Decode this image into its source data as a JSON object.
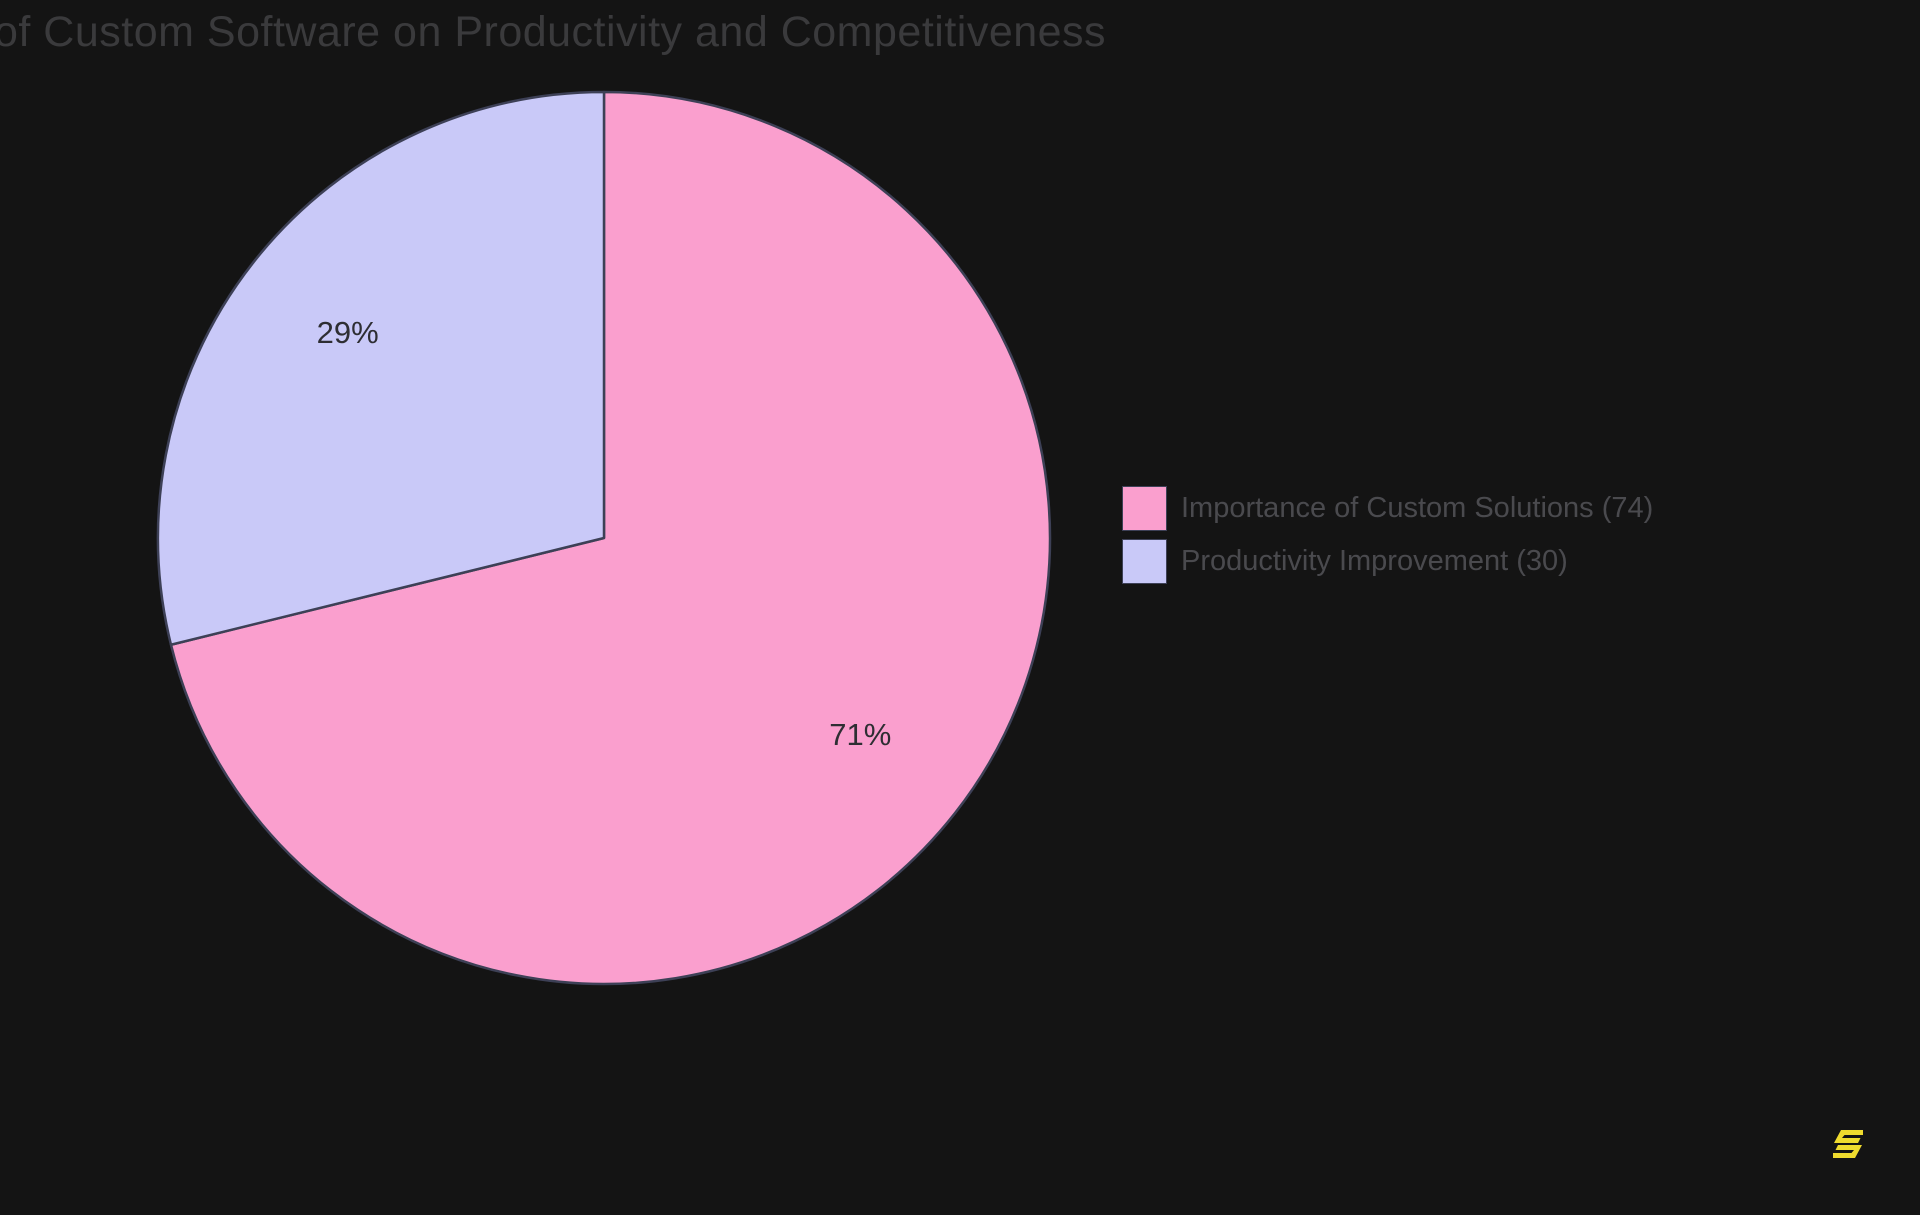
{
  "title": "of Custom Software on Productivity and Competitiveness",
  "colors": {
    "background": "#141414",
    "slice_border": "#3d4056",
    "title_text": "#3a3a3c",
    "legend_text": "#4a4a4e",
    "slice_label_text": "#2e2e33",
    "logo_yellow": "#efdb2e"
  },
  "chart_data": {
    "type": "pie",
    "title": "of Custom Software on Productivity and Competitiveness",
    "labels": [
      "Importance of Custom Solutions",
      "Productivity Improvement"
    ],
    "values": [
      74,
      30
    ],
    "percent_labels": [
      "71%",
      "29%"
    ],
    "slice_colors": [
      "#fa9fce",
      "#c9c9f8"
    ],
    "start_angle_deg": 0,
    "direction": "clockwise",
    "labels_inside": true,
    "legend_position": "right",
    "background": "#141414"
  },
  "legend": {
    "items": [
      {
        "label": "Importance of Custom Solutions (74)"
      },
      {
        "label": "Productivity Improvement (30)"
      }
    ]
  },
  "logo": {
    "name": "s-watermark"
  }
}
